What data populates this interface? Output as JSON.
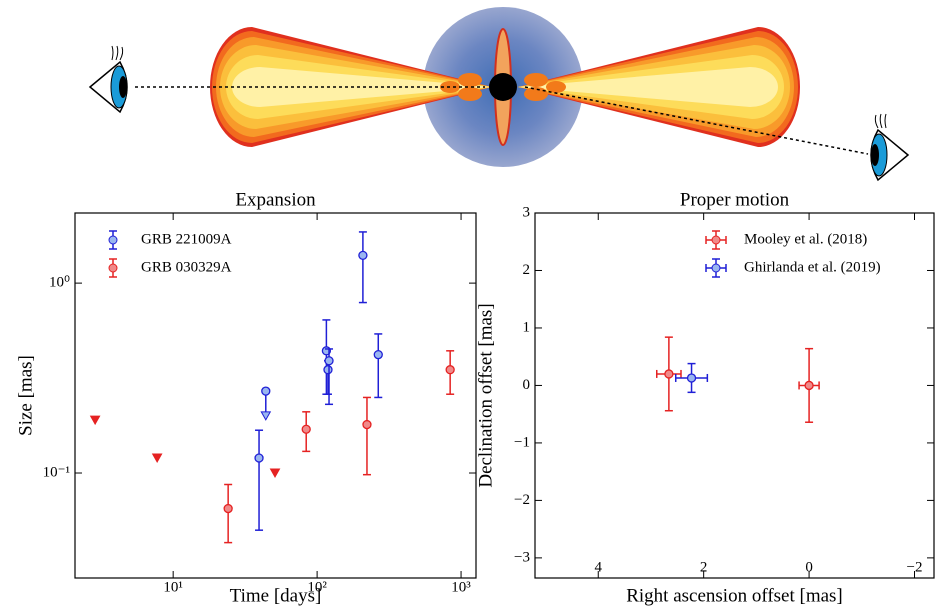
{
  "chart_data": [
    {
      "type": "scatter",
      "title": "Expansion",
      "xlabel": "Time [days]",
      "ylabel": "Size [mas]",
      "xscale": "log",
      "yscale": "log",
      "xlim": [
        2.08,
        1270
      ],
      "ylim": [
        0.028,
        2.34
      ],
      "xticks": [
        {
          "value": 10,
          "label": "10¹"
        },
        {
          "value": 100,
          "label": "10²"
        },
        {
          "value": 1000,
          "label": "10³"
        }
      ],
      "yticks": [
        {
          "value": 0.1,
          "label": "10⁻¹"
        },
        {
          "value": 1,
          "label": "10⁰"
        }
      ],
      "legend": "upper left",
      "series": [
        {
          "name": "GRB 221009A",
          "color": "#1f1fd6",
          "x": [
            39.5,
            44,
            116,
            119,
            121,
            208,
            266
          ],
          "values": [
            0.12,
            0.27,
            0.44,
            0.35,
            0.39,
            1.4,
            0.42
          ],
          "y_low": [
            0.05,
            0.2,
            0.26,
            0.26,
            0.23,
            0.79,
            0.25
          ],
          "y_high": [
            0.168,
            null,
            0.64,
            0.39,
            0.45,
            1.86,
            0.54
          ],
          "upper_limit": [
            false,
            true,
            false,
            false,
            false,
            false,
            false
          ]
        },
        {
          "name": "GRB 030329A",
          "color": "#e52222",
          "x": [
            2.87,
            7.74,
            24.1,
            51,
            84,
            222,
            840
          ],
          "values": [
            0.19,
            0.12,
            0.065,
            0.1,
            0.17,
            0.18,
            0.35
          ],
          "y_low": [
            null,
            null,
            0.043,
            null,
            0.13,
            0.098,
            0.26
          ],
          "y_high": [
            null,
            null,
            0.087,
            null,
            0.21,
            0.25,
            0.44
          ],
          "upper_limit": [
            true,
            true,
            false,
            true,
            false,
            false,
            false
          ]
        }
      ]
    },
    {
      "type": "scatter",
      "title": "Proper motion",
      "xlabel": "Right ascension offset [mas]",
      "ylabel": "Declination offset [mas]",
      "xlim": [
        5.2,
        -2.37
      ],
      "ylim": [
        -3.35,
        3
      ],
      "xticks": [
        4,
        2,
        0,
        {
          "value": -2,
          "label": "−2"
        }
      ],
      "yticks": [
        {
          "value": -3,
          "label": "−3"
        },
        {
          "value": -2,
          "label": "−2"
        },
        {
          "value": -1,
          "label": "−1"
        },
        0,
        1,
        2,
        3
      ],
      "legend": "upper right",
      "series": [
        {
          "name": "Mooley et al. (2018)",
          "color": "#e52222",
          "x": [
            2.66,
            0
          ],
          "values": [
            0.2,
            0
          ],
          "xerr": [
            0.23,
            0.19
          ],
          "yerr": [
            0.64,
            0.64
          ]
        },
        {
          "name": "Ghirlanda et al. (2019)",
          "color": "#1f1fd6",
          "x": [
            2.23
          ],
          "values": [
            0.13
          ],
          "xerr": [
            0.3
          ],
          "yerr": [
            0.25
          ]
        }
      ]
    }
  ]
}
